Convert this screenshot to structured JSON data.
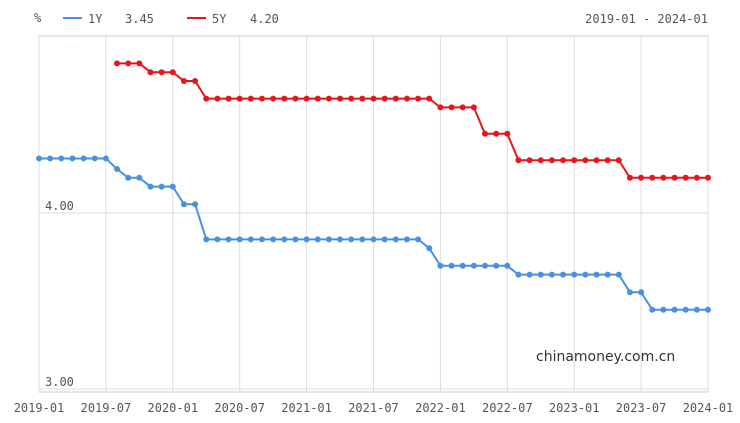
{
  "chart_data": {
    "type": "line",
    "ylabel": "%",
    "date_range": "2019-01 - 2024-01",
    "watermark": "chinamoney.com.cn",
    "x_ticks": [
      "2019-01",
      "2019-07",
      "2020-01",
      "2020-07",
      "2021-01",
      "2021-07",
      "2022-01",
      "2022-07",
      "2023-01",
      "2023-07",
      "2024-01"
    ],
    "y_ticks": [
      {
        "value": 4.0,
        "label": "4.00"
      },
      {
        "value": 3.0,
        "label": "3.00"
      }
    ],
    "ylim": [
      3.0,
      5.0
    ],
    "xlim": [
      "2019-01",
      "2024-01"
    ],
    "grid": true,
    "legend_position": "top-left",
    "colors": {
      "1Y": "#4a90e2",
      "5Y": "#e8161c",
      "grid": "#dddddd",
      "axis": "#999999"
    },
    "series": [
      {
        "name": "1Y",
        "latest": "3.45",
        "points": [
          [
            "2019-01",
            4.31
          ],
          [
            "2019-02",
            4.31
          ],
          [
            "2019-03",
            4.31
          ],
          [
            "2019-04",
            4.31
          ],
          [
            "2019-05",
            4.31
          ],
          [
            "2019-06",
            4.31
          ],
          [
            "2019-07",
            4.31
          ],
          [
            "2019-08",
            4.25
          ],
          [
            "2019-09",
            4.2
          ],
          [
            "2019-10",
            4.2
          ],
          [
            "2019-11",
            4.15
          ],
          [
            "2019-12",
            4.15
          ],
          [
            "2020-01",
            4.15
          ],
          [
            "2020-02",
            4.05
          ],
          [
            "2020-03",
            4.05
          ],
          [
            "2020-04",
            3.85
          ],
          [
            "2020-05",
            3.85
          ],
          [
            "2020-06",
            3.85
          ],
          [
            "2020-07",
            3.85
          ],
          [
            "2020-08",
            3.85
          ],
          [
            "2020-09",
            3.85
          ],
          [
            "2020-10",
            3.85
          ],
          [
            "2020-11",
            3.85
          ],
          [
            "2020-12",
            3.85
          ],
          [
            "2021-01",
            3.85
          ],
          [
            "2021-02",
            3.85
          ],
          [
            "2021-03",
            3.85
          ],
          [
            "2021-04",
            3.85
          ],
          [
            "2021-05",
            3.85
          ],
          [
            "2021-06",
            3.85
          ],
          [
            "2021-07",
            3.85
          ],
          [
            "2021-08",
            3.85
          ],
          [
            "2021-09",
            3.85
          ],
          [
            "2021-10",
            3.85
          ],
          [
            "2021-11",
            3.85
          ],
          [
            "2021-12",
            3.8
          ],
          [
            "2022-01",
            3.7
          ],
          [
            "2022-02",
            3.7
          ],
          [
            "2022-03",
            3.7
          ],
          [
            "2022-04",
            3.7
          ],
          [
            "2022-05",
            3.7
          ],
          [
            "2022-06",
            3.7
          ],
          [
            "2022-07",
            3.7
          ],
          [
            "2022-08",
            3.65
          ],
          [
            "2022-09",
            3.65
          ],
          [
            "2022-10",
            3.65
          ],
          [
            "2022-11",
            3.65
          ],
          [
            "2022-12",
            3.65
          ],
          [
            "2023-01",
            3.65
          ],
          [
            "2023-02",
            3.65
          ],
          [
            "2023-03",
            3.65
          ],
          [
            "2023-04",
            3.65
          ],
          [
            "2023-05",
            3.65
          ],
          [
            "2023-06",
            3.55
          ],
          [
            "2023-07",
            3.55
          ],
          [
            "2023-08",
            3.45
          ],
          [
            "2023-09",
            3.45
          ],
          [
            "2023-10",
            3.45
          ],
          [
            "2023-11",
            3.45
          ],
          [
            "2023-12",
            3.45
          ],
          [
            "2024-01",
            3.45
          ]
        ]
      },
      {
        "name": "5Y",
        "latest": "4.20",
        "points": [
          [
            "2019-08",
            4.85
          ],
          [
            "2019-09",
            4.85
          ],
          [
            "2019-10",
            4.85
          ],
          [
            "2019-11",
            4.8
          ],
          [
            "2019-12",
            4.8
          ],
          [
            "2020-01",
            4.8
          ],
          [
            "2020-02",
            4.75
          ],
          [
            "2020-03",
            4.75
          ],
          [
            "2020-04",
            4.65
          ],
          [
            "2020-05",
            4.65
          ],
          [
            "2020-06",
            4.65
          ],
          [
            "2020-07",
            4.65
          ],
          [
            "2020-08",
            4.65
          ],
          [
            "2020-09",
            4.65
          ],
          [
            "2020-10",
            4.65
          ],
          [
            "2020-11",
            4.65
          ],
          [
            "2020-12",
            4.65
          ],
          [
            "2021-01",
            4.65
          ],
          [
            "2021-02",
            4.65
          ],
          [
            "2021-03",
            4.65
          ],
          [
            "2021-04",
            4.65
          ],
          [
            "2021-05",
            4.65
          ],
          [
            "2021-06",
            4.65
          ],
          [
            "2021-07",
            4.65
          ],
          [
            "2021-08",
            4.65
          ],
          [
            "2021-09",
            4.65
          ],
          [
            "2021-10",
            4.65
          ],
          [
            "2021-11",
            4.65
          ],
          [
            "2021-12",
            4.65
          ],
          [
            "2022-01",
            4.6
          ],
          [
            "2022-02",
            4.6
          ],
          [
            "2022-03",
            4.6
          ],
          [
            "2022-04",
            4.6
          ],
          [
            "2022-05",
            4.45
          ],
          [
            "2022-06",
            4.45
          ],
          [
            "2022-07",
            4.45
          ],
          [
            "2022-08",
            4.3
          ],
          [
            "2022-09",
            4.3
          ],
          [
            "2022-10",
            4.3
          ],
          [
            "2022-11",
            4.3
          ],
          [
            "2022-12",
            4.3
          ],
          [
            "2023-01",
            4.3
          ],
          [
            "2023-02",
            4.3
          ],
          [
            "2023-03",
            4.3
          ],
          [
            "2023-04",
            4.3
          ],
          [
            "2023-05",
            4.3
          ],
          [
            "2023-06",
            4.2
          ],
          [
            "2023-07",
            4.2
          ],
          [
            "2023-08",
            4.2
          ],
          [
            "2023-09",
            4.2
          ],
          [
            "2023-10",
            4.2
          ],
          [
            "2023-11",
            4.2
          ],
          [
            "2023-12",
            4.2
          ],
          [
            "2024-01",
            4.2
          ]
        ]
      }
    ]
  }
}
